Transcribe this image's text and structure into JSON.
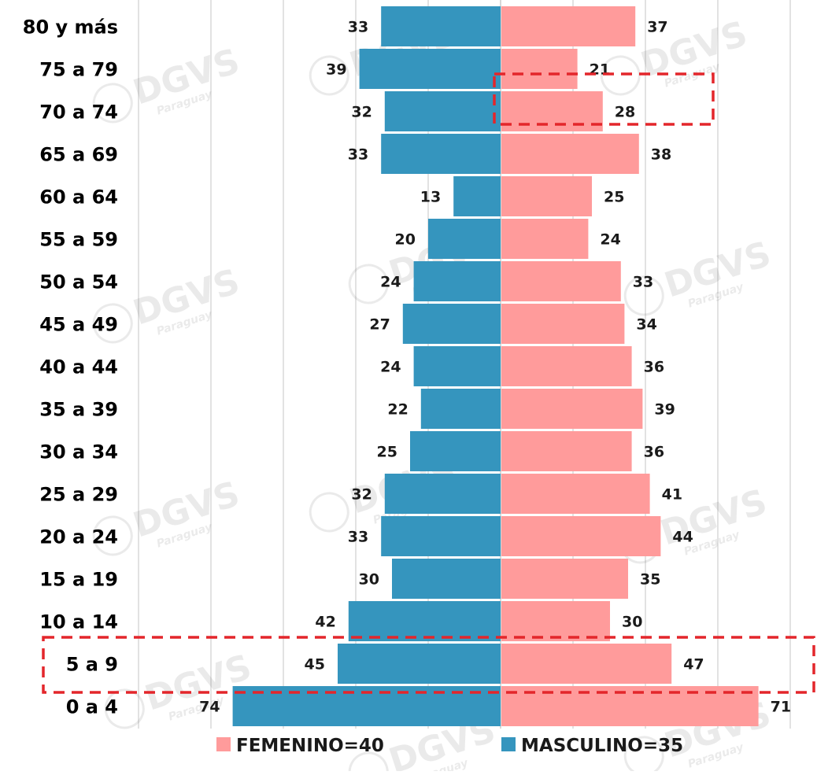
{
  "chart_data": {
    "type": "bar",
    "orientation": "horizontal",
    "variant": "population-pyramid",
    "categories": [
      "80 y más",
      "75 a 79",
      "70 a 74",
      "65 a 69",
      "60 a 64",
      "55 a 59",
      "50 a 54",
      "45 a 49",
      "40 a 44",
      "35 a 39",
      "30 a 34",
      "25 a 29",
      "20 a 24",
      "15 a 19",
      "10 a 14",
      "5 a 9",
      "0 a 4"
    ],
    "series": [
      {
        "name": "MASCULINO=35",
        "side": "left",
        "color": "#3595be",
        "values": [
          33,
          39,
          32,
          33,
          13,
          20,
          24,
          27,
          24,
          22,
          25,
          32,
          33,
          30,
          42,
          45,
          74
        ]
      },
      {
        "name": "FEMENINO=40",
        "side": "right",
        "color": "#ff9b9b",
        "values": [
          37,
          21,
          28,
          38,
          25,
          24,
          33,
          34,
          36,
          39,
          36,
          41,
          44,
          35,
          30,
          47,
          71
        ]
      }
    ],
    "legend": {
      "position": "bottom",
      "order": [
        "FEMENINO=40",
        "MASCULINO=35"
      ]
    },
    "grid": true,
    "highlights": [
      {
        "category": "70 a 74",
        "series": "FEMENINO=40",
        "style": "red-dashed-box"
      },
      {
        "category": "5 a 9",
        "series": "both",
        "style": "red-dashed-box"
      }
    ],
    "watermark": {
      "text": "DGVS",
      "subtext": "Paraguay"
    },
    "colors": {
      "highlight": "#e3262b",
      "grid": "#d9d9d9",
      "axis": "#cccccc"
    }
  }
}
